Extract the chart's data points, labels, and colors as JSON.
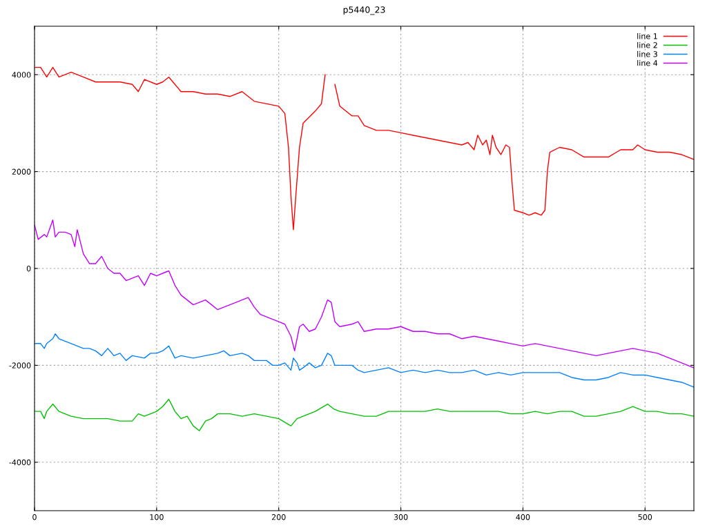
{
  "chart_data": {
    "type": "line",
    "title": "p5440_23",
    "xlim": [
      0,
      540
    ],
    "ylim": [
      -5000,
      5000
    ],
    "xticks": [
      0,
      100,
      200,
      300,
      400,
      500
    ],
    "yticks": [
      -4000,
      -2000,
      0,
      2000,
      4000
    ],
    "grid": true,
    "legend": "top right",
    "line_style": "solid",
    "marker": "none",
    "series": [
      {
        "name": "line 1",
        "color": "#ff0000",
        "x": [
          0,
          5,
          10,
          15,
          20,
          30,
          40,
          50,
          60,
          70,
          80,
          85,
          90,
          100,
          105,
          110,
          115,
          120,
          130,
          140,
          150,
          160,
          170,
          180,
          190,
          200,
          205,
          208,
          210,
          212,
          214,
          217,
          220,
          230,
          235,
          238,
          240,
          244,
          246,
          250,
          260,
          265,
          270,
          280,
          290,
          300,
          310,
          320,
          330,
          340,
          350,
          355,
          360,
          363,
          367,
          370,
          373,
          375,
          378,
          382,
          386,
          389,
          391,
          393,
          400,
          405,
          410,
          415,
          418,
          420,
          422,
          430,
          440,
          450,
          460,
          470,
          480,
          490,
          494,
          500,
          510,
          520,
          530,
          540
        ],
        "values": [
          4150,
          4150,
          3950,
          4150,
          3950,
          4050,
          3950,
          3850,
          3850,
          3850,
          3800,
          3650,
          3900,
          3800,
          3850,
          3950,
          3800,
          3650,
          3650,
          3600,
          3600,
          3550,
          3650,
          3450,
          3400,
          3350,
          3200,
          2500,
          1500,
          800,
          1500,
          2500,
          3000,
          3250,
          3400,
          4000,
          null,
          null,
          3800,
          3350,
          3150,
          3150,
          2950,
          2850,
          2850,
          2800,
          2750,
          2700,
          2650,
          2600,
          2550,
          2600,
          2450,
          2750,
          2550,
          2650,
          2350,
          2750,
          2500,
          2350,
          2550,
          2500,
          1800,
          1200,
          1150,
          1100,
          1150,
          1100,
          1200,
          2000,
          2400,
          2500,
          2450,
          2300,
          2300,
          2300,
          2450,
          2450,
          2550,
          2450,
          2400,
          2400,
          2350,
          2250
        ]
      },
      {
        "name": "line 2",
        "color": "#00c000",
        "x": [
          0,
          5,
          8,
          10,
          15,
          20,
          30,
          40,
          50,
          60,
          70,
          80,
          85,
          90,
          100,
          105,
          110,
          115,
          120,
          125,
          130,
          135,
          140,
          145,
          150,
          160,
          170,
          180,
          190,
          200,
          210,
          215,
          220,
          230,
          240,
          245,
          250,
          260,
          270,
          280,
          290,
          300,
          310,
          320,
          330,
          340,
          350,
          360,
          370,
          380,
          390,
          400,
          410,
          420,
          430,
          440,
          450,
          460,
          470,
          480,
          490,
          500,
          510,
          520,
          530,
          540
        ],
        "values": [
          -2950,
          -2950,
          -3100,
          -2950,
          -2800,
          -2950,
          -3050,
          -3100,
          -3100,
          -3100,
          -3150,
          -3150,
          -3000,
          -3050,
          -2950,
          -2850,
          -2700,
          -2950,
          -3100,
          -3050,
          -3250,
          -3350,
          -3150,
          -3100,
          -3000,
          -3000,
          -3050,
          -3000,
          -3050,
          -3100,
          -3250,
          -3100,
          -3050,
          -2950,
          -2800,
          -2900,
          -2950,
          -3000,
          -3050,
          -3050,
          -2950,
          -2950,
          -2950,
          -2950,
          -2900,
          -2950,
          -2950,
          -2950,
          -2950,
          -2950,
          -3000,
          -3000,
          -2950,
          -3000,
          -2950,
          -2950,
          -3050,
          -3050,
          -3000,
          -2950,
          -2850,
          -2950,
          -2950,
          -3000,
          -3000,
          -3050
        ]
      },
      {
        "name": "line 3",
        "color": "#0080ff",
        "x": [
          0,
          5,
          8,
          10,
          15,
          17,
          20,
          30,
          40,
          45,
          50,
          55,
          60,
          65,
          70,
          75,
          80,
          90,
          95,
          100,
          105,
          110,
          115,
          120,
          130,
          140,
          150,
          155,
          160,
          170,
          175,
          180,
          190,
          195,
          200,
          205,
          210,
          212,
          215,
          217,
          220,
          225,
          230,
          235,
          240,
          243,
          246,
          250,
          260,
          265,
          270,
          280,
          290,
          300,
          310,
          320,
          330,
          340,
          350,
          360,
          370,
          380,
          390,
          400,
          410,
          420,
          430,
          440,
          450,
          460,
          470,
          480,
          490,
          500,
          510,
          520,
          530,
          540
        ],
        "values": [
          -1550,
          -1550,
          -1650,
          -1550,
          -1450,
          -1350,
          -1450,
          -1550,
          -1650,
          -1650,
          -1700,
          -1800,
          -1650,
          -1800,
          -1750,
          -1900,
          -1800,
          -1850,
          -1750,
          -1750,
          -1700,
          -1600,
          -1850,
          -1800,
          -1850,
          -1800,
          -1750,
          -1700,
          -1800,
          -1750,
          -1800,
          -1900,
          -1900,
          -2000,
          -2000,
          -1950,
          -2100,
          -1850,
          -1950,
          -2100,
          -2050,
          -1950,
          -2050,
          -2000,
          -1750,
          -1800,
          -2000,
          -2000,
          -2000,
          -2100,
          -2150,
          -2100,
          -2050,
          -2150,
          -2100,
          -2150,
          -2100,
          -2150,
          -2150,
          -2100,
          -2200,
          -2150,
          -2200,
          -2150,
          -2150,
          -2150,
          -2150,
          -2250,
          -2300,
          -2300,
          -2250,
          -2150,
          -2200,
          -2200,
          -2250,
          -2300,
          -2350,
          -2450
        ]
      },
      {
        "name": "line 4",
        "color": "#c000ff",
        "x": [
          0,
          3,
          8,
          10,
          15,
          17,
          20,
          25,
          30,
          33,
          35,
          40,
          45,
          50,
          55,
          60,
          65,
          70,
          75,
          80,
          85,
          90,
          95,
          100,
          105,
          110,
          115,
          120,
          125,
          130,
          135,
          140,
          145,
          150,
          160,
          170,
          175,
          180,
          185,
          190,
          200,
          205,
          210,
          213,
          217,
          220,
          225,
          230,
          235,
          240,
          243,
          246,
          250,
          260,
          265,
          270,
          280,
          290,
          300,
          310,
          320,
          330,
          340,
          350,
          360,
          370,
          380,
          390,
          400,
          410,
          420,
          430,
          440,
          450,
          460,
          470,
          480,
          490,
          500,
          510,
          520,
          530,
          540
        ],
        "values": [
          900,
          600,
          700,
          650,
          1000,
          650,
          750,
          750,
          700,
          450,
          800,
          300,
          100,
          100,
          250,
          0,
          -100,
          -100,
          -250,
          -200,
          -150,
          -350,
          -100,
          -150,
          -100,
          -50,
          -350,
          -550,
          -650,
          -750,
          -700,
          -650,
          -750,
          -850,
          -750,
          -650,
          -600,
          -800,
          -950,
          -1000,
          -1100,
          -1150,
          -1400,
          -1700,
          -1200,
          -1150,
          -1300,
          -1250,
          -1000,
          -650,
          -700,
          -1100,
          -1200,
          -1150,
          -1100,
          -1300,
          -1250,
          -1250,
          -1200,
          -1300,
          -1300,
          -1350,
          -1350,
          -1450,
          -1400,
          -1450,
          -1500,
          -1550,
          -1600,
          -1550,
          -1600,
          -1650,
          -1700,
          -1750,
          -1800,
          -1750,
          -1700,
          -1650,
          -1700,
          -1750,
          -1850,
          -1950,
          -2050
        ]
      }
    ]
  }
}
